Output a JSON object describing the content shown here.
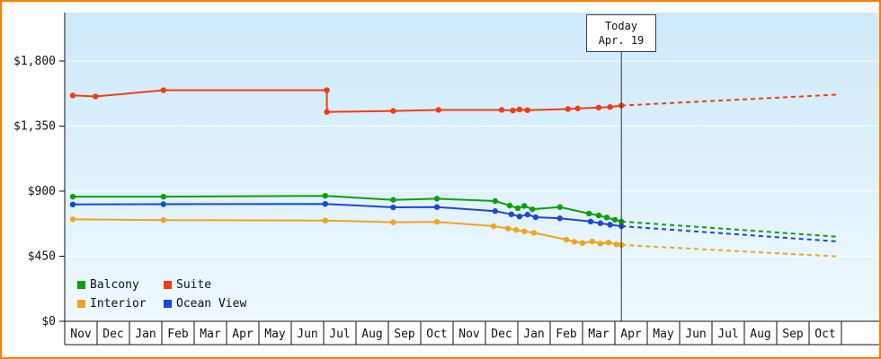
{
  "page": {
    "border_color": "#ff7d00",
    "background": "#ffffff"
  },
  "chart_data": {
    "type": "line",
    "x_categories": [
      "Nov",
      "Dec",
      "Jan",
      "Feb",
      "Mar",
      "Apr",
      "May",
      "Jun",
      "Jul",
      "Aug",
      "Sep",
      "Oct",
      "Nov",
      "Dec",
      "Jan",
      "Feb",
      "Mar",
      "Apr",
      "May",
      "Jun",
      "Jul",
      "Aug",
      "Sep",
      "Oct"
    ],
    "y_ticks": [
      {
        "label": "$0",
        "value": 0
      },
      {
        "label": "$450",
        "value": 450
      },
      {
        "label": "$900",
        "value": 900
      },
      {
        "label": "$1,350",
        "value": 1350
      },
      {
        "label": "$1,800",
        "value": 1800
      }
    ],
    "ylim": [
      0,
      1980
    ],
    "grid": true,
    "legend_position": "bottom-left-inside",
    "today": {
      "x": 17.2,
      "line1": "Today",
      "line2": "Apr. 19"
    },
    "legend": [
      {
        "label": "Balcony",
        "color": "#0ca10c"
      },
      {
        "label": "Suite",
        "color": "#f23d0f"
      },
      {
        "label": "Interior",
        "color": "#efa51b"
      },
      {
        "label": "Ocean View",
        "color": "#1c46e0"
      }
    ],
    "series": [
      {
        "name": "Interior",
        "color": "#efa51b",
        "solid": [
          [
            0.25,
            705
          ],
          [
            3.05,
            700
          ],
          [
            8.05,
            697
          ],
          [
            10.15,
            685
          ],
          [
            11.5,
            688
          ],
          [
            13.25,
            658
          ],
          [
            13.7,
            642
          ],
          [
            13.95,
            632
          ],
          [
            14.2,
            622
          ],
          [
            14.5,
            612
          ],
          [
            15.5,
            565
          ],
          [
            15.75,
            550
          ],
          [
            16.0,
            542
          ],
          [
            16.3,
            552
          ],
          [
            16.55,
            538
          ],
          [
            16.8,
            545
          ],
          [
            17.05,
            532
          ],
          [
            17.2,
            528
          ]
        ],
        "projection": [
          [
            17.2,
            528
          ],
          [
            23.9,
            448
          ]
        ]
      },
      {
        "name": "Ocean View",
        "color": "#1c46e0",
        "solid": [
          [
            0.25,
            808
          ],
          [
            3.05,
            810
          ],
          [
            8.05,
            812
          ],
          [
            10.15,
            788
          ],
          [
            11.5,
            790
          ],
          [
            13.3,
            762
          ],
          [
            13.8,
            740
          ],
          [
            14.05,
            725
          ],
          [
            14.3,
            738
          ],
          [
            14.55,
            720
          ],
          [
            15.3,
            712
          ],
          [
            16.25,
            690
          ],
          [
            16.55,
            678
          ],
          [
            16.85,
            668
          ],
          [
            17.2,
            658
          ]
        ],
        "projection": [
          [
            17.2,
            658
          ],
          [
            23.9,
            552
          ]
        ]
      },
      {
        "name": "Balcony",
        "color": "#0ca10c",
        "solid": [
          [
            0.25,
            862
          ],
          [
            3.05,
            862
          ],
          [
            8.05,
            868
          ],
          [
            10.15,
            840
          ],
          [
            11.5,
            848
          ],
          [
            13.3,
            832
          ],
          [
            13.75,
            800
          ],
          [
            14.0,
            782
          ],
          [
            14.2,
            798
          ],
          [
            14.45,
            775
          ],
          [
            15.3,
            790
          ],
          [
            16.2,
            745
          ],
          [
            16.5,
            732
          ],
          [
            16.75,
            718
          ],
          [
            17.0,
            702
          ],
          [
            17.2,
            690
          ]
        ],
        "projection": [
          [
            17.2,
            690
          ],
          [
            23.9,
            585
          ]
        ]
      },
      {
        "name": "Suite",
        "color": "#f23d0f",
        "solid": [
          [
            0.25,
            1562
          ],
          [
            0.95,
            1555
          ],
          [
            3.05,
            1598
          ],
          [
            8.1,
            1598
          ],
          [
            8.1,
            1448
          ],
          [
            10.15,
            1455
          ],
          [
            11.55,
            1462
          ],
          [
            13.5,
            1462
          ],
          [
            13.85,
            1458
          ],
          [
            14.05,
            1465
          ],
          [
            14.3,
            1460
          ],
          [
            15.55,
            1468
          ],
          [
            15.85,
            1472
          ],
          [
            16.5,
            1478
          ],
          [
            16.85,
            1482
          ],
          [
            17.2,
            1492
          ]
        ],
        "projection": [
          [
            17.2,
            1492
          ],
          [
            23.9,
            1568
          ]
        ]
      }
    ],
    "style": {
      "plot_gradient_top": "#cde9fa",
      "plot_gradient_bottom": "#eff9ff",
      "grid_color": "#ffffff",
      "axis_color": "#111111",
      "today_line_color": "#2c3340",
      "text_color": "#111111"
    }
  }
}
